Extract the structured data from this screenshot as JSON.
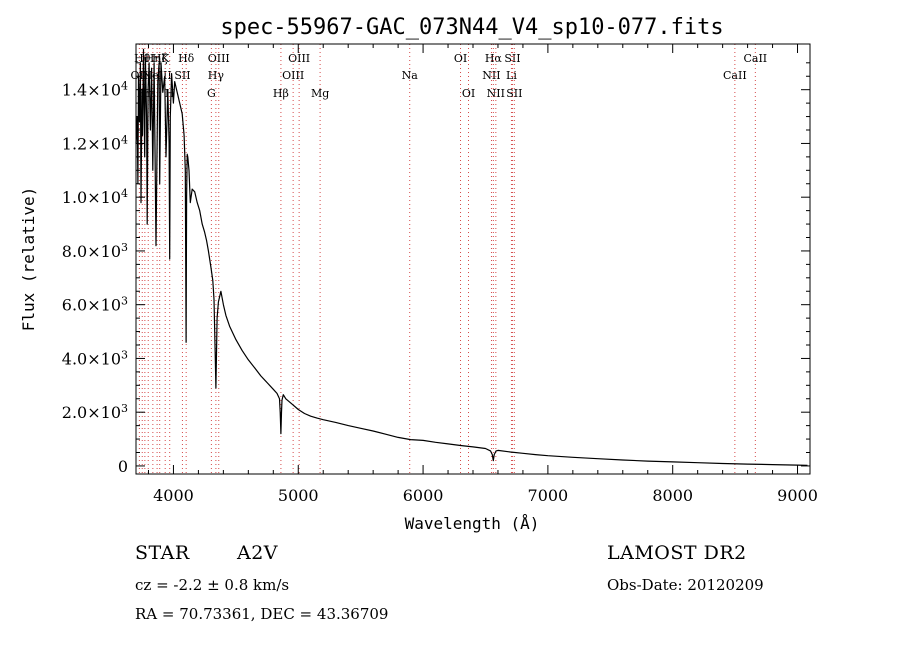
{
  "chart_data": {
    "type": "line",
    "title": "spec-55967-GAC_073N44_V4_sp10-077.fits",
    "xlabel": "Wavelength (Å)",
    "ylabel": "Flux (relative)",
    "xlim": [
      3700,
      9100
    ],
    "ylim": [
      -300,
      15700
    ],
    "xticks": [
      4000,
      5000,
      6000,
      7000,
      8000,
      9000
    ],
    "xtick_labels": [
      "4000",
      "5000",
      "6000",
      "7000",
      "8000",
      "9000"
    ],
    "yticks": [
      {
        "value": 0,
        "mantissa": "0",
        "exp": ""
      },
      {
        "value": 2000,
        "mantissa": "2.0×10",
        "exp": "3"
      },
      {
        "value": 4000,
        "mantissa": "4.0×10",
        "exp": "3"
      },
      {
        "value": 6000,
        "mantissa": "6.0×10",
        "exp": "3"
      },
      {
        "value": 8000,
        "mantissa": "8.0×10",
        "exp": "3"
      },
      {
        "value": 10000,
        "mantissa": "1.0×10",
        "exp": "4"
      },
      {
        "value": 12000,
        "mantissa": "1.2×10",
        "exp": "4"
      },
      {
        "value": 14000,
        "mantissa": "1.4×10",
        "exp": "4"
      }
    ],
    "grid": false,
    "spectrum": {
      "x": [
        3700,
        3710,
        3715,
        3720,
        3728,
        3735,
        3740,
        3748,
        3752,
        3760,
        3770,
        3775,
        3785,
        3790,
        3797,
        3805,
        3815,
        3825,
        3835,
        3845,
        3860,
        3875,
        3885,
        3890,
        3900,
        3915,
        3930,
        3940,
        3955,
        3965,
        3970,
        3975,
        3985,
        4000,
        4010,
        4030,
        4050,
        4070,
        4085,
        4095,
        4101,
        4105,
        4110,
        4115,
        4125,
        4135,
        4150,
        4170,
        4190,
        4210,
        4230,
        4250,
        4265,
        4280,
        4300,
        4315,
        4325,
        4335,
        4340,
        4345,
        4350,
        4360,
        4380,
        4400,
        4420,
        4450,
        4500,
        4550,
        4600,
        4650,
        4700,
        4750,
        4800,
        4830,
        4850,
        4855,
        4861,
        4866,
        4870,
        4880,
        4900,
        4950,
        5000,
        5050,
        5100,
        5150,
        5200,
        5300,
        5400,
        5500,
        5600,
        5700,
        5800,
        5900,
        6000,
        6100,
        6200,
        6300,
        6400,
        6500,
        6540,
        6555,
        6563,
        6570,
        6585,
        6600,
        6700,
        6800,
        6900,
        7000,
        7200,
        7400,
        7600,
        7800,
        8000,
        8200,
        8400,
        8600,
        8800,
        9000,
        9080
      ],
      "y": [
        12000,
        13000,
        10500,
        14500,
        12800,
        15000,
        9800,
        14000,
        12300,
        15500,
        11500,
        15200,
        13000,
        9000,
        14000,
        15000,
        12500,
        14800,
        11000,
        15000,
        8200,
        14300,
        15000,
        10500,
        15000,
        13900,
        14500,
        11500,
        14000,
        12000,
        7700,
        13000,
        14600,
        13500,
        14300,
        13900,
        13500,
        13100,
        12300,
        11000,
        4600,
        10000,
        11600,
        11500,
        11000,
        9800,
        10300,
        10200,
        9800,
        9500,
        9000,
        8700,
        8400,
        8000,
        7400,
        6900,
        6200,
        4000,
        2900,
        4200,
        5500,
        6100,
        6500,
        6000,
        5600,
        5200,
        4700,
        4300,
        3950,
        3650,
        3350,
        3100,
        2850,
        2700,
        2500,
        2000,
        1200,
        2000,
        2450,
        2650,
        2500,
        2300,
        2100,
        1950,
        1850,
        1780,
        1720,
        1620,
        1500,
        1400,
        1300,
        1180,
        1060,
        980,
        950,
        880,
        820,
        760,
        710,
        650,
        560,
        420,
        200,
        420,
        560,
        580,
        520,
        470,
        420,
        380,
        320,
        270,
        220,
        180,
        150,
        120,
        90,
        70,
        50,
        30,
        20
      ]
    },
    "lines": [
      {
        "wave": 3727,
        "label": "OII",
        "row": 2
      },
      {
        "wave": 3750,
        "label": "Hθ",
        "row": 1
      },
      {
        "wave": 3771,
        "label": "Hη",
        "row": 3
      },
      {
        "wave": 3798,
        "label": "Hε",
        "row": 3
      },
      {
        "wave": 3835,
        "label": "Hη",
        "row": 1
      },
      {
        "wave": 3869,
        "label": "NeIII",
        "row": 2
      },
      {
        "wave": 3890,
        "label": "Hζ",
        "row": 1
      },
      {
        "wave": 3934,
        "label": "K",
        "row": 1
      },
      {
        "wave": 3970,
        "label": "H",
        "row": 3
      },
      {
        "wave": 4072,
        "label": "SII",
        "row": 2
      },
      {
        "wave": 4102,
        "label": "Hδ",
        "row": 1
      },
      {
        "wave": 4304,
        "label": "G",
        "row": 3
      },
      {
        "wave": 4340,
        "label": "Hγ",
        "row": 2
      },
      {
        "wave": 4363,
        "label": "OIII",
        "row": 1
      },
      {
        "wave": 4861,
        "label": "Hβ",
        "row": 3
      },
      {
        "wave": 4959,
        "label": "OIII",
        "row": 2
      },
      {
        "wave": 5007,
        "label": "OIII",
        "row": 1
      },
      {
        "wave": 5175,
        "label": "Mg",
        "row": 3
      },
      {
        "wave": 5893,
        "label": "Na",
        "row": 2
      },
      {
        "wave": 6300,
        "label": "OI",
        "row": 1
      },
      {
        "wave": 6364,
        "label": "OI",
        "row": 3
      },
      {
        "wave": 6548,
        "label": "NII",
        "row": 2
      },
      {
        "wave": 6563,
        "label": "Hα",
        "row": 1
      },
      {
        "wave": 6583,
        "label": "NII",
        "row": 3
      },
      {
        "wave": 6708,
        "label": "Li",
        "row": 2
      },
      {
        "wave": 6716,
        "label": "SII",
        "row": 1
      },
      {
        "wave": 6731,
        "label": "SII",
        "row": 3
      },
      {
        "wave": 8498,
        "label": "CaII",
        "row": 2
      },
      {
        "wave": 8662,
        "label": "CaII",
        "row": 1
      }
    ],
    "line_color": "#d44a4a",
    "spectrum_color": "#000000"
  },
  "info": {
    "object_class": "STAR",
    "subclass": "A2V",
    "survey": "LAMOST DR2",
    "redshift": "cz = -2.2 ± 0.8 km/s",
    "obs_date": "Obs-Date: 20120209",
    "coords": "RA =  70.73361, DEC =  43.36709"
  }
}
